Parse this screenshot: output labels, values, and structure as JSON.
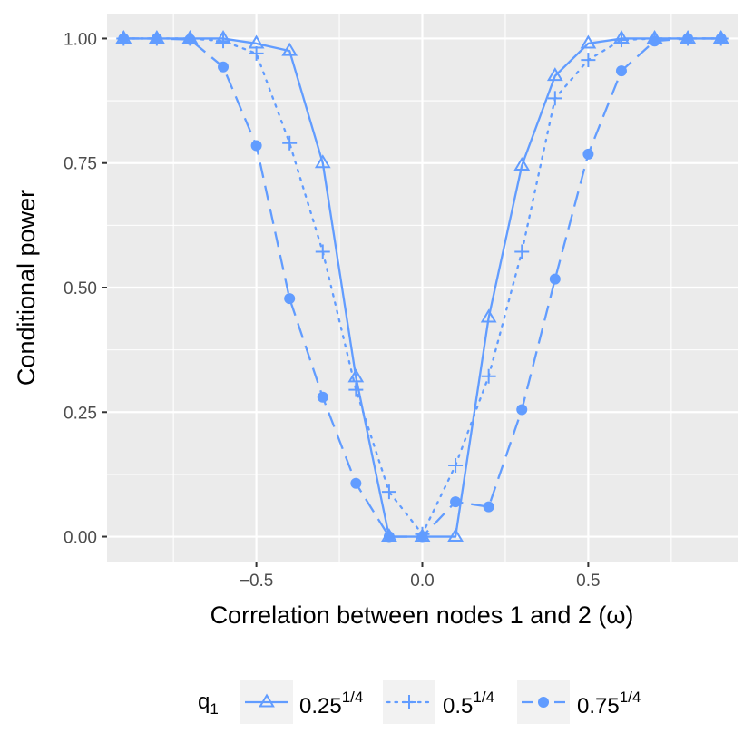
{
  "chart_data": {
    "type": "line",
    "xlabel": "Correlation between nodes 1 and 2 (ω)",
    "ylabel": "Conditional power",
    "xlim": [
      -0.95,
      0.95
    ],
    "ylim": [
      -0.05,
      1.05
    ],
    "x_ticks": [
      -0.5,
      0.0,
      0.5
    ],
    "x_tick_labels": [
      "−0.5",
      "0.0",
      "0.5"
    ],
    "y_ticks": [
      0.0,
      0.25,
      0.5,
      0.75,
      1.0
    ],
    "y_tick_labels": [
      "0.00",
      "0.25",
      "0.50",
      "0.75",
      "1.00"
    ],
    "grid": true,
    "color": "#619CFF",
    "x": [
      -0.9,
      -0.8,
      -0.7,
      -0.6,
      -0.5,
      -0.4,
      -0.3,
      -0.2,
      -0.1,
      0.0,
      0.1,
      0.2,
      0.3,
      0.4,
      0.5,
      0.6,
      0.7,
      0.8,
      0.9
    ],
    "series": [
      {
        "name": "0.25^{1/4}",
        "label_base": "0.25",
        "label_exp": "1/4",
        "linestyle": "solid",
        "marker": "open-triangle",
        "values": [
          1.0,
          1.0,
          1.0,
          1.0,
          0.99,
          0.975,
          0.75,
          0.32,
          0.0,
          0.0,
          0.0,
          0.44,
          0.745,
          0.925,
          0.99,
          1.0,
          1.0,
          1.0,
          1.0
        ]
      },
      {
        "name": "0.5^{1/4}",
        "label_base": "0.5",
        "label_exp": "1/4",
        "linestyle": "dotted",
        "marker": "plus",
        "values": [
          1.0,
          1.0,
          1.0,
          0.995,
          0.97,
          0.79,
          0.572,
          0.295,
          0.09,
          0.005,
          0.143,
          0.322,
          0.572,
          0.88,
          0.957,
          0.997,
          1.0,
          1.0,
          1.0
        ]
      },
      {
        "name": "0.75^{1/4}",
        "label_base": "0.75",
        "label_exp": "1/4",
        "linestyle": "dashed",
        "marker": "filled-circle",
        "values": [
          1.0,
          1.0,
          0.998,
          0.943,
          0.785,
          0.478,
          0.28,
          0.107,
          0.0,
          0.0,
          0.07,
          0.06,
          0.255,
          0.517,
          0.768,
          0.935,
          0.995,
          1.0,
          1.0
        ]
      }
    ],
    "legend": {
      "position": "bottom",
      "title": "q",
      "title_sub": "1"
    }
  }
}
